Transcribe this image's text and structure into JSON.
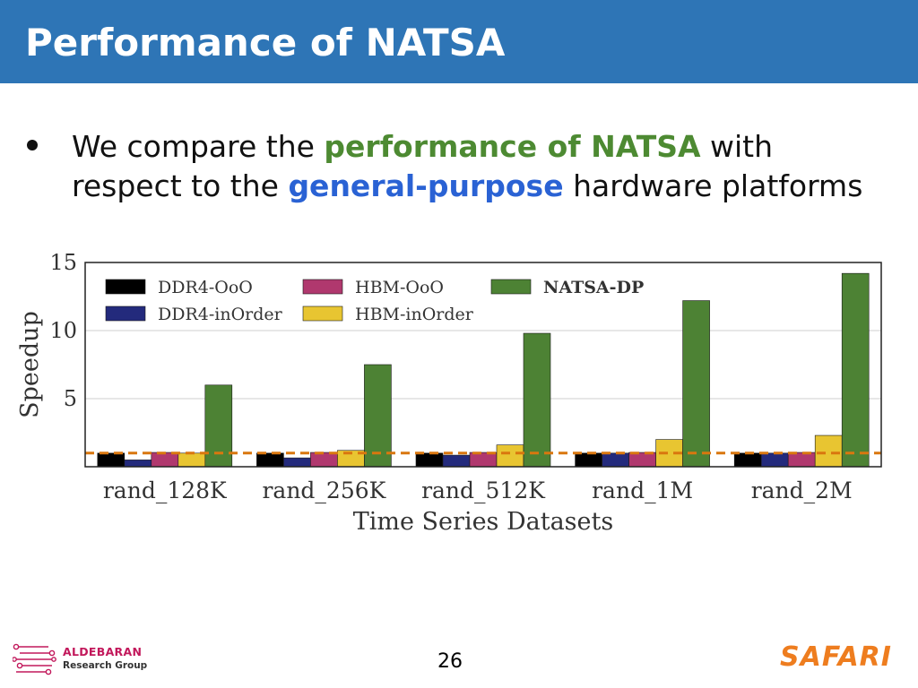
{
  "slide": {
    "title": "Performance of NATSA",
    "bullet": {
      "line1_pre": "We compare the ",
      "line1_highlight": "performance of NATSA",
      "line1_post": " with",
      "line2_pre": "respect to the ",
      "line2_highlight": "general-purpose",
      "line2_post": " hardware platforms"
    },
    "page_number": "26",
    "footer_left": {
      "line1": "ALDEBARAN",
      "line2": "Research Group"
    },
    "footer_right": "SAFARI"
  },
  "colors": {
    "title_bar": "#2e75b6",
    "highlight_green": "#4d8a32",
    "highlight_blue": "#2a62d4",
    "safari": "#ee7d1f",
    "baseline": "#d9770f"
  },
  "chart_data": {
    "type": "bar",
    "title": "",
    "xlabel": "Time Series Datasets",
    "ylabel": "Speedup",
    "ylim": [
      0,
      15
    ],
    "yticks": [
      5,
      10,
      15
    ],
    "grid": true,
    "legend_placement": "top-left",
    "baseline": 1,
    "categories": [
      "rand_128K",
      "rand_256K",
      "rand_512K",
      "rand_1M",
      "rand_2M"
    ],
    "series": [
      {
        "name": "DDR4-OoO",
        "color": "#000000",
        "values": [
          1.0,
          1.0,
          1.0,
          1.0,
          1.0
        ]
      },
      {
        "name": "DDR4-inOrder",
        "color": "#232a7c",
        "values": [
          0.5,
          0.65,
          0.85,
          1.0,
          1.0
        ]
      },
      {
        "name": "HBM-OoO",
        "color": "#b0386e",
        "values": [
          1.05,
          1.05,
          1.05,
          1.05,
          1.05
        ]
      },
      {
        "name": "HBM-inOrder",
        "color": "#e8c531",
        "values": [
          1.0,
          1.2,
          1.6,
          2.0,
          2.3
        ]
      },
      {
        "name": "NATSA-DP",
        "color": "#4d8234",
        "values": [
          6.0,
          7.5,
          9.8,
          12.2,
          14.2
        ]
      }
    ]
  }
}
